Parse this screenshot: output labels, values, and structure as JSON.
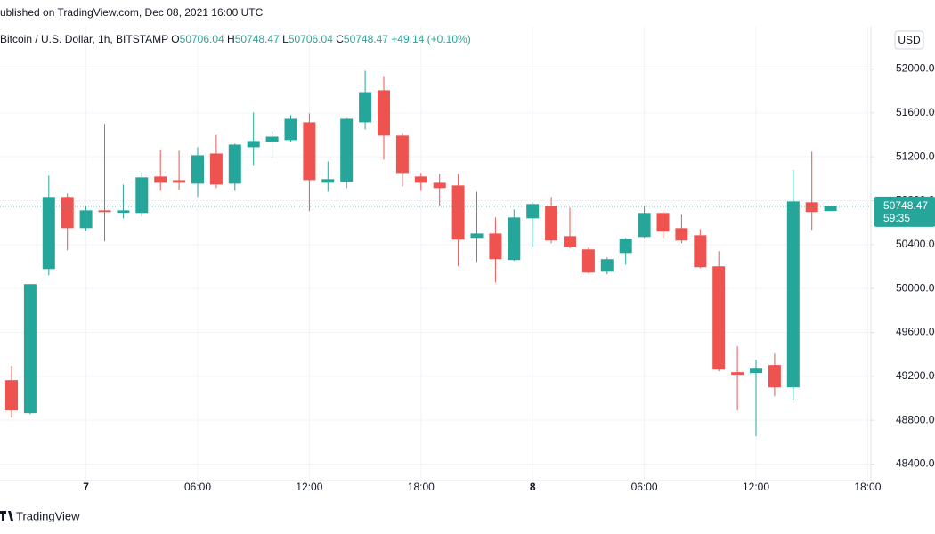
{
  "header": {
    "published": "ublished on TradingView.com, Dec 08, 2021 16:00 UTC",
    "symbol": "Bitcoin / U.S. Dollar, 1h, BITSTAMP",
    "ohlc_letters": [
      "O",
      "H",
      "L",
      "C"
    ],
    "change": "+49.14 (+0.10%)",
    "currency": "USD",
    "countdown": "59:35"
  },
  "footer": {
    "brand": "TradingView"
  },
  "chart_data": {
    "type": "candlestick",
    "categories": [
      null,
      null,
      null,
      null,
      "7",
      null,
      null,
      null,
      null,
      null,
      "06:00",
      null,
      null,
      null,
      null,
      null,
      "12:00",
      null,
      null,
      null,
      null,
      null,
      "18:00",
      null,
      null,
      null,
      null,
      null,
      "8",
      null,
      null,
      null,
      null,
      null,
      "06:00",
      null,
      null,
      null,
      null,
      null,
      "12:00",
      null,
      null,
      null,
      null,
      null,
      "18:00"
    ],
    "series": {
      "open": [
        49165,
        48865,
        50177,
        50834,
        50550,
        50712,
        50690,
        50688,
        51020,
        50987,
        50955,
        51230,
        50955,
        51287,
        51336,
        51352,
        51514,
        50963,
        50971,
        51514,
        51806,
        51393,
        51020,
        50963,
        50939,
        50461,
        50501,
        50259,
        50639,
        50753,
        50477,
        50356,
        50153,
        50323,
        50469,
        50688,
        50550,
        50485,
        50202,
        49238,
        49230,
        49303,
        49100,
        50785,
        50706.04,
        null,
        null
      ],
      "high": [
        49295,
        50040,
        51028,
        50866,
        50752,
        51498,
        50947,
        51060,
        51263,
        51255,
        51287,
        51400,
        51320,
        51603,
        51433,
        51579,
        51595,
        51158,
        51554,
        51984,
        51935,
        51417,
        51052,
        51044,
        51044,
        50882,
        50647,
        50720,
        50785,
        50834,
        50736,
        50372,
        50283,
        50461,
        50745,
        50712,
        50672,
        50542,
        50340,
        49473,
        49351,
        49408,
        51077,
        51247,
        50748.47,
        null,
        null
      ],
      "low": [
        48825,
        48855,
        50121,
        50348,
        50526,
        50429,
        50639,
        50655,
        50890,
        50898,
        50834,
        50915,
        50890,
        51125,
        51198,
        51336,
        50704,
        50882,
        50915,
        51449,
        51174,
        50931,
        50890,
        50753,
        50202,
        50242,
        50056,
        50250,
        50380,
        50412,
        50364,
        50137,
        50129,
        50218,
        50461,
        50461,
        50412,
        50186,
        49246,
        48890,
        48655,
        49019,
        48987,
        50534,
        50706.04,
        null,
        null
      ],
      "close": [
        48890,
        50040,
        50834,
        50550,
        50712,
        50696,
        50712,
        51012,
        50963,
        50963,
        51214,
        50947,
        51311,
        51344,
        51384,
        51546,
        50987,
        50996,
        51546,
        51789,
        51393,
        51052,
        50963,
        50915,
        50445,
        50501,
        50267,
        50647,
        50769,
        50437,
        50380,
        50145,
        50267,
        50453,
        50688,
        50518,
        50437,
        50194,
        49262,
        49214,
        49270,
        49100,
        50793,
        50696,
        50748.47,
        null,
        null
      ]
    },
    "up_color": "#26a69a",
    "down_color": "#ef5350",
    "ylim": [
      48250,
      52385
    ],
    "yticks": [
      {
        "value": 48400,
        "label": "48400.00"
      },
      {
        "value": 48800,
        "label": "48800.00"
      },
      {
        "value": 49200,
        "label": "49200.00"
      },
      {
        "value": 49600,
        "label": "49600.00"
      },
      {
        "value": 50000,
        "label": "50000.00"
      },
      {
        "value": 50400,
        "label": "50400.00"
      },
      {
        "value": 50800,
        "label": "50800.00"
      },
      {
        "value": 51200,
        "label": "51200.00"
      },
      {
        "value": 51600,
        "label": "51600.00"
      },
      {
        "value": 52000,
        "label": "52000.00"
      }
    ],
    "grid": true
  }
}
